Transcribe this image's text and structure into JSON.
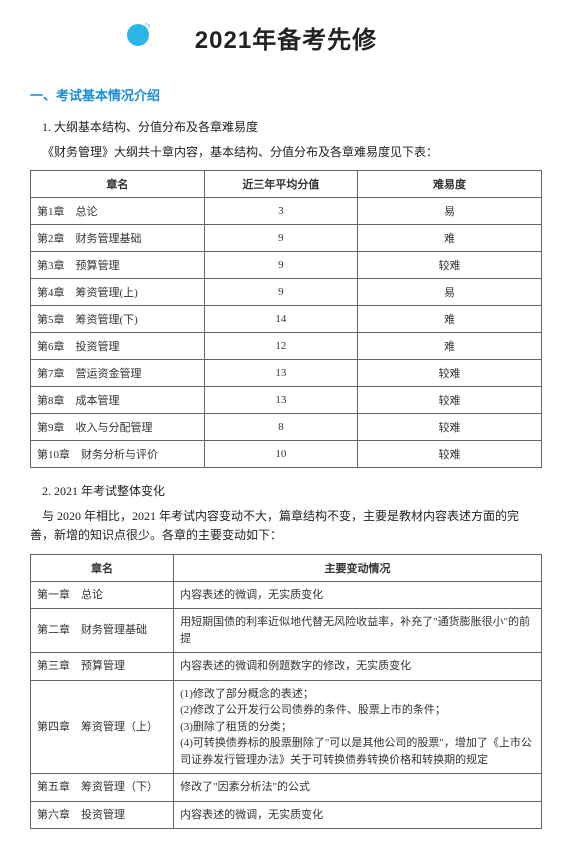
{
  "page_title": "2021年备考先修",
  "section_heading": "一、考试基本情况介绍",
  "sub1": "1. 大纲基本结构、分值分布及各章难易度",
  "sub1_text": "《财务管理》大纲共十章内容，基本结构、分值分布及各章难易度见下表：",
  "table1": {
    "headers": {
      "c1": "章名",
      "c2": "近三年平均分值",
      "c3": "难易度"
    },
    "rows": [
      {
        "name": "第1章　总论",
        "score": "3",
        "diff": "易"
      },
      {
        "name": "第2章　财务管理基础",
        "score": "9",
        "diff": "难"
      },
      {
        "name": "第3章　预算管理",
        "score": "9",
        "diff": "较难"
      },
      {
        "name": "第4章　筹资管理(上)",
        "score": "9",
        "diff": "易"
      },
      {
        "name": "第5章　筹资管理(下)",
        "score": "14",
        "diff": "难"
      },
      {
        "name": "第6章　投资管理",
        "score": "12",
        "diff": "难"
      },
      {
        "name": "第7章　营运资金管理",
        "score": "13",
        "diff": "较难"
      },
      {
        "name": "第8章　成本管理",
        "score": "13",
        "diff": "较难"
      },
      {
        "name": "第9章　收入与分配管理",
        "score": "8",
        "diff": "较难"
      },
      {
        "name": "第10章　财务分析与评价",
        "score": "10",
        "diff": "较难"
      }
    ]
  },
  "sub2": "2. 2021 年考试整体变化",
  "sub2_text": "与 2020 年相比，2021 年考试内容变动不大，篇章结构不变，主要是教材内容表述方面的完善，新增的知识点很少。各章的主要变动如下：",
  "table2": {
    "headers": {
      "c1": "章名",
      "c2": "主要变动情况"
    },
    "rows": [
      {
        "name": "第一章　总论",
        "change": "内容表述的微调，无实质变化"
      },
      {
        "name": "第二章　财务管理基础",
        "change": "用短期国债的利率近似地代替无风险收益率，补充了\"通货膨胀很小\"的前提"
      },
      {
        "name": "第三章　预算管理",
        "change": "内容表述的微调和例题数字的修改，无实质变化"
      },
      {
        "name": "第四章　筹资管理（上）",
        "change": "(1)修改了部分概念的表述；\n(2)修改了公开发行公司债券的条件、股票上市的条件；\n(3)删除了租赁的分类；\n(4)可转换债券标的股票删除了\"可以是其他公司的股票\"，增加了《上市公司证券发行管理办法》关于可转换债券转换价格和转换期的规定"
      },
      {
        "name": "第五章　筹资管理（下）",
        "change": "修改了\"因素分析法\"的公式"
      },
      {
        "name": "第六章　投资管理",
        "change": "内容表述的微调，无实质变化"
      }
    ]
  },
  "colors": {
    "accent": "#1a8fd6",
    "icon": "#2bb6e8"
  }
}
